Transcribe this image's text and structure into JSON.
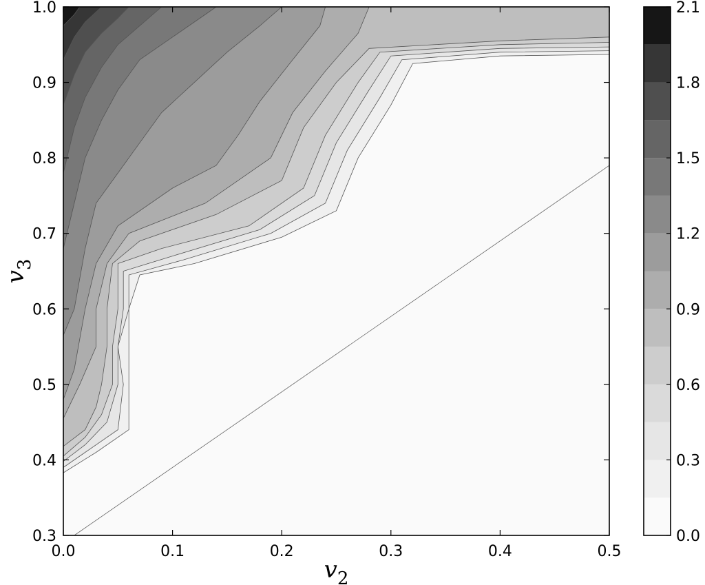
{
  "chart_data": {
    "type": "heatmap",
    "subtype": "filled-contour",
    "colormap": "grayscale (white = low, black = high)",
    "xlabel": {
      "base": "v",
      "sub": "2"
    },
    "ylabel": {
      "base": "v",
      "sub": "3"
    },
    "xlim": [
      0.0,
      0.5
    ],
    "ylim": [
      0.3,
      1.0
    ],
    "x_ticks": [
      "0.0",
      "0.1",
      "0.2",
      "0.3",
      "0.4",
      "0.5"
    ],
    "y_ticks": [
      "0.3",
      "0.4",
      "0.5",
      "0.6",
      "0.7",
      "0.8",
      "0.9",
      "1.0"
    ],
    "colorbar": {
      "range": [
        0.0,
        2.1
      ],
      "levels": [
        0.0,
        0.15,
        0.3,
        0.45,
        0.6,
        0.75,
        0.9,
        1.05,
        1.2,
        1.35,
        1.5,
        1.65,
        1.8,
        1.95,
        2.1
      ],
      "tick_labels": [
        "0.0",
        "0.3",
        "0.6",
        "0.9",
        "1.2",
        "1.5",
        "1.8",
        "2.1"
      ],
      "colors": [
        "#fafafa",
        "#f0f0f0",
        "#e6e6e6",
        "#dadada",
        "#cdcdcd",
        "#bebebe",
        "#adadad",
        "#9c9c9c",
        "#8a8a8a",
        "#787878",
        "#656565",
        "#4f4f4f",
        "#363636",
        "#161616"
      ],
      "placement": "right"
    },
    "diagonal_line": {
      "points": [
        [
          0.01,
          0.3
        ],
        [
          0.5,
          0.79
        ]
      ]
    },
    "contours": [
      {
        "level": 0.15,
        "points": [
          [
            0.0,
            0.383
          ],
          [
            0.03,
            0.41
          ],
          [
            0.06,
            0.44
          ],
          [
            0.06,
            0.5
          ],
          [
            0.06,
            0.55
          ],
          [
            0.06,
            0.6
          ],
          [
            0.07,
            0.645
          ],
          [
            0.12,
            0.66
          ],
          [
            0.2,
            0.695
          ],
          [
            0.25,
            0.73
          ],
          [
            0.27,
            0.8
          ],
          [
            0.3,
            0.87
          ],
          [
            0.32,
            0.925
          ],
          [
            0.4,
            0.935
          ],
          [
            0.5,
            0.937
          ]
        ]
      },
      {
        "level": 0.3,
        "points": [
          [
            0.0,
            0.39
          ],
          [
            0.02,
            0.41
          ],
          [
            0.05,
            0.44
          ],
          [
            0.055,
            0.5
          ],
          [
            0.05,
            0.55
          ],
          [
            0.06,
            0.6
          ],
          [
            0.06,
            0.645
          ],
          [
            0.11,
            0.665
          ],
          [
            0.19,
            0.7
          ],
          [
            0.24,
            0.74
          ],
          [
            0.26,
            0.81
          ],
          [
            0.29,
            0.88
          ],
          [
            0.31,
            0.93
          ],
          [
            0.4,
            0.94
          ],
          [
            0.5,
            0.942
          ]
        ]
      },
      {
        "level": 0.45,
        "points": [
          [
            0.0,
            0.398
          ],
          [
            0.02,
            0.42
          ],
          [
            0.04,
            0.45
          ],
          [
            0.05,
            0.5
          ],
          [
            0.05,
            0.55
          ],
          [
            0.055,
            0.6
          ],
          [
            0.055,
            0.65
          ],
          [
            0.1,
            0.67
          ],
          [
            0.18,
            0.705
          ],
          [
            0.23,
            0.75
          ],
          [
            0.25,
            0.82
          ],
          [
            0.28,
            0.89
          ],
          [
            0.3,
            0.935
          ],
          [
            0.4,
            0.945
          ],
          [
            0.5,
            0.947
          ]
        ]
      },
      {
        "level": 0.6,
        "points": [
          [
            0.0,
            0.405
          ],
          [
            0.02,
            0.43
          ],
          [
            0.035,
            0.46
          ],
          [
            0.045,
            0.5
          ],
          [
            0.045,
            0.55
          ],
          [
            0.05,
            0.6
          ],
          [
            0.05,
            0.66
          ],
          [
            0.09,
            0.68
          ],
          [
            0.17,
            0.71
          ],
          [
            0.22,
            0.76
          ],
          [
            0.24,
            0.83
          ],
          [
            0.27,
            0.9
          ],
          [
            0.29,
            0.94
          ],
          [
            0.4,
            0.95
          ],
          [
            0.5,
            0.953
          ]
        ]
      },
      {
        "level": 0.75,
        "points": [
          [
            0.0,
            0.418
          ],
          [
            0.02,
            0.44
          ],
          [
            0.03,
            0.47
          ],
          [
            0.035,
            0.5
          ],
          [
            0.04,
            0.55
          ],
          [
            0.04,
            0.6
          ],
          [
            0.045,
            0.66
          ],
          [
            0.07,
            0.69
          ],
          [
            0.14,
            0.725
          ],
          [
            0.2,
            0.77
          ],
          [
            0.22,
            0.84
          ],
          [
            0.25,
            0.9
          ],
          [
            0.28,
            0.945
          ],
          [
            0.4,
            0.955
          ],
          [
            0.5,
            0.96
          ]
        ]
      },
      {
        "level": 0.9,
        "points": [
          [
            0.0,
            0.455
          ],
          [
            0.015,
            0.5
          ],
          [
            0.03,
            0.55
          ],
          [
            0.03,
            0.6
          ],
          [
            0.04,
            0.66
          ],
          [
            0.06,
            0.7
          ],
          [
            0.13,
            0.74
          ],
          [
            0.19,
            0.8
          ],
          [
            0.21,
            0.86
          ],
          [
            0.24,
            0.915
          ],
          [
            0.27,
            0.965
          ],
          [
            0.28,
            1.0
          ]
        ]
      },
      {
        "level": 1.05,
        "points": [
          [
            0.0,
            0.48
          ],
          [
            0.01,
            0.52
          ],
          [
            0.02,
            0.6
          ],
          [
            0.03,
            0.66
          ],
          [
            0.05,
            0.71
          ],
          [
            0.1,
            0.76
          ],
          [
            0.14,
            0.79
          ],
          [
            0.16,
            0.83
          ],
          [
            0.18,
            0.875
          ],
          [
            0.21,
            0.93
          ],
          [
            0.235,
            0.975
          ],
          [
            0.24,
            1.0
          ]
        ]
      },
      {
        "level": 1.2,
        "points": [
          [
            0.0,
            0.565
          ],
          [
            0.01,
            0.6
          ],
          [
            0.02,
            0.68
          ],
          [
            0.03,
            0.74
          ],
          [
            0.05,
            0.78
          ],
          [
            0.07,
            0.82
          ],
          [
            0.09,
            0.86
          ],
          [
            0.12,
            0.9
          ],
          [
            0.15,
            0.94
          ],
          [
            0.18,
            0.975
          ],
          [
            0.2,
            1.0
          ]
        ]
      },
      {
        "level": 1.35,
        "points": [
          [
            0.0,
            0.68
          ],
          [
            0.01,
            0.74
          ],
          [
            0.02,
            0.8
          ],
          [
            0.035,
            0.85
          ],
          [
            0.05,
            0.89
          ],
          [
            0.07,
            0.93
          ],
          [
            0.1,
            0.96
          ],
          [
            0.13,
            0.99
          ],
          [
            0.14,
            1.0
          ]
        ]
      },
      {
        "level": 1.5,
        "points": [
          [
            0.0,
            0.78
          ],
          [
            0.01,
            0.84
          ],
          [
            0.02,
            0.88
          ],
          [
            0.035,
            0.92
          ],
          [
            0.05,
            0.95
          ],
          [
            0.07,
            0.975
          ],
          [
            0.09,
            1.0
          ]
        ]
      },
      {
        "level": 1.65,
        "points": [
          [
            0.0,
            0.87
          ],
          [
            0.01,
            0.91
          ],
          [
            0.02,
            0.94
          ],
          [
            0.035,
            0.965
          ],
          [
            0.05,
            0.985
          ],
          [
            0.06,
            1.0
          ]
        ]
      },
      {
        "level": 1.8,
        "points": [
          [
            0.0,
            0.93
          ],
          [
            0.01,
            0.96
          ],
          [
            0.02,
            0.98
          ],
          [
            0.035,
            1.0
          ]
        ]
      },
      {
        "level": 1.95,
        "points": [
          [
            0.0,
            0.975
          ],
          [
            0.01,
            0.99
          ],
          [
            0.015,
            1.0
          ]
        ]
      }
    ]
  }
}
